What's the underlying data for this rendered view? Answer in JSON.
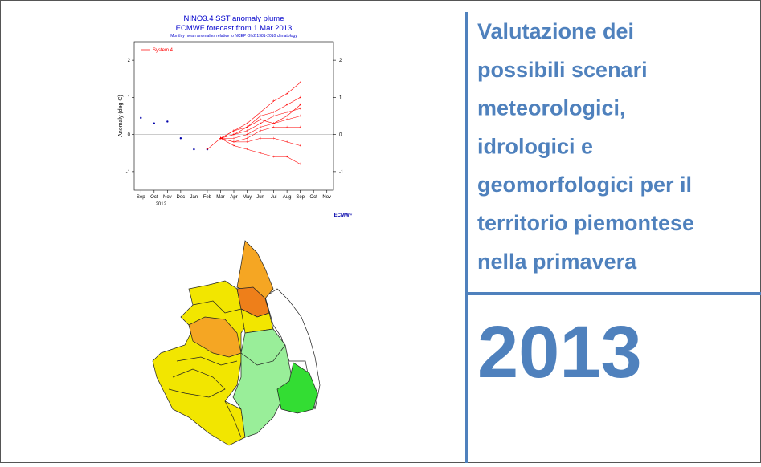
{
  "chart_data": {
    "type": "line",
    "title": "NINO3.4 SST anomaly plume",
    "subtitle": "ECMWF forecast from 1 Mar 2013",
    "note": "Monthly mean anomalies relative to NCEP OIv2 1981-2010 climatology",
    "y_label": "Anomaly (deg C)",
    "legend": "System 4",
    "year_label": "2012",
    "logo": "ECMWF",
    "categories": [
      "Sep",
      "Oct",
      "Nov",
      "Dec",
      "Jan",
      "Feb",
      "Mar",
      "Apr",
      "May",
      "Jun",
      "Jul",
      "Aug",
      "Sep",
      "Oct",
      "Nov"
    ],
    "ylim": [
      -1.5,
      2.5
    ],
    "yticks": [
      -1,
      0,
      1,
      2
    ],
    "series": [
      {
        "color": "#0000aa",
        "values": [
          0.45,
          0.3,
          0.35,
          -0.1,
          -0.4,
          -0.4,
          null,
          null,
          null,
          null,
          null,
          null,
          null,
          null,
          null
        ]
      },
      {
        "color": "#ff0000",
        "values": [
          null,
          null,
          null,
          null,
          null,
          -0.4,
          -0.1,
          0.1,
          0.3,
          0.6,
          0.9,
          1.1,
          1.4,
          null,
          null
        ]
      },
      {
        "color": "#ff0000",
        "values": [
          null,
          null,
          null,
          null,
          null,
          null,
          -0.1,
          0.0,
          0.2,
          0.5,
          0.6,
          0.8,
          1.0,
          null,
          null
        ]
      },
      {
        "color": "#ff0000",
        "values": [
          null,
          null,
          null,
          null,
          null,
          null,
          -0.1,
          0.0,
          0.1,
          0.3,
          0.5,
          0.6,
          0.7,
          null,
          null
        ]
      },
      {
        "color": "#ff0000",
        "values": [
          null,
          null,
          null,
          null,
          null,
          null,
          -0.1,
          0.1,
          0.2,
          0.4,
          0.3,
          0.5,
          0.8,
          null,
          null
        ]
      },
      {
        "color": "#ff0000",
        "values": [
          null,
          null,
          null,
          null,
          null,
          null,
          -0.1,
          -0.1,
          0.0,
          0.2,
          0.3,
          0.4,
          0.5,
          null,
          null
        ]
      },
      {
        "color": "#ff0000",
        "values": [
          null,
          null,
          null,
          null,
          null,
          null,
          -0.1,
          -0.2,
          -0.1,
          0.1,
          0.2,
          0.2,
          0.2,
          null,
          null
        ]
      },
      {
        "color": "#ff0000",
        "values": [
          null,
          null,
          null,
          null,
          null,
          null,
          -0.1,
          -0.2,
          -0.2,
          -0.1,
          -0.1,
          -0.2,
          -0.3,
          null,
          null
        ]
      },
      {
        "color": "#ff0000",
        "values": [
          null,
          null,
          null,
          null,
          null,
          null,
          -0.1,
          -0.3,
          -0.4,
          -0.5,
          -0.6,
          -0.6,
          -0.8,
          null,
          null
        ]
      }
    ],
    "zero_line": true
  },
  "title": {
    "lines": [
      "Valutazione dei",
      "possibili scenari",
      "meteorologici,",
      "idrologici e",
      "geomorfologici per il",
      "territorio piemontese",
      "nella primavera"
    ]
  },
  "year": "2013"
}
